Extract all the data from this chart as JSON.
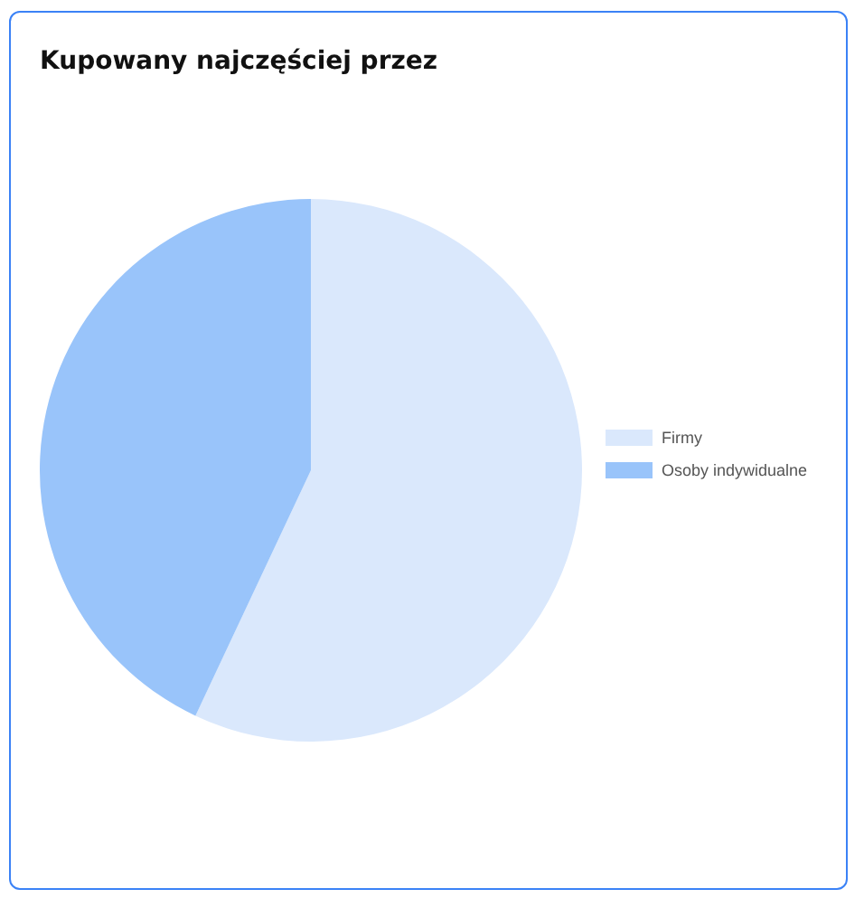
{
  "chart_data": {
    "type": "pie",
    "title": "Kupowany najczęściej przez",
    "categories": [
      "Firmy",
      "Osoby indywidualne"
    ],
    "values": [
      57,
      43
    ],
    "colors": [
      "#dae8fc",
      "#99c4fa"
    ],
    "legend": "right"
  }
}
